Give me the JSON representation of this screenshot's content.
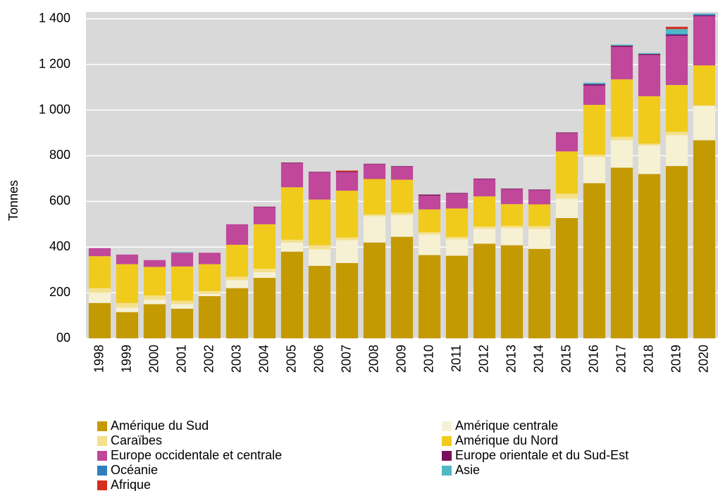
{
  "chart_data": {
    "type": "stacked_bar",
    "y_label": "Tonnes",
    "categories": [
      "1998",
      "1999",
      "2000",
      "2001",
      "2002",
      "2003",
      "2004",
      "2005",
      "2006",
      "2007",
      "2008",
      "2009",
      "2010",
      "2011",
      "2012",
      "2013",
      "2014",
      "2015",
      "2016",
      "2017",
      "2018",
      "2019",
      "2020"
    ],
    "series": [
      {
        "name": "Amérique du Sud",
        "color": "#c49a02",
        "values": [
          155,
          115,
          150,
          130,
          185,
          220,
          265,
          380,
          318,
          330,
          420,
          445,
          365,
          362,
          415,
          408,
          392,
          527,
          680,
          748,
          720,
          755,
          868
        ]
      },
      {
        "name": "Amérique centrale",
        "color": "#f6f1d3",
        "values": [
          45,
          20,
          20,
          20,
          10,
          35,
          25,
          40,
          72,
          100,
          115,
          95,
          90,
          72,
          65,
          75,
          88,
          85,
          115,
          120,
          125,
          135,
          150
        ]
      },
      {
        "name": "Caraïbes",
        "color": "#f5e08c",
        "values": [
          20,
          20,
          18,
          15,
          12,
          15,
          15,
          12,
          18,
          12,
          8,
          10,
          10,
          10,
          10,
          10,
          12,
          22,
          10,
          15,
          8,
          15,
          3
        ]
      },
      {
        "name": "Amérique du Nord",
        "color": "#f1cb1c",
        "values": [
          140,
          170,
          125,
          150,
          118,
          140,
          195,
          230,
          200,
          205,
          155,
          145,
          100,
          125,
          132,
          95,
          95,
          185,
          218,
          252,
          208,
          205,
          175
        ]
      },
      {
        "name": "Europe occidentale et centrale",
        "color": "#c0479a",
        "values": [
          35,
          42,
          30,
          60,
          50,
          90,
          75,
          105,
          120,
          80,
          65,
          58,
          60,
          65,
          75,
          65,
          62,
          80,
          85,
          142,
          180,
          215,
          215
        ]
      },
      {
        "name": "Europe orientale et du Sud-Est",
        "color": "#7b0f5b",
        "values": [
          0,
          0,
          0,
          0,
          0,
          0,
          2,
          3,
          2,
          3,
          2,
          2,
          5,
          3,
          3,
          3,
          3,
          3,
          5,
          5,
          5,
          5,
          4
        ]
      },
      {
        "name": "Océanie",
        "color": "#2f7ec0",
        "values": [
          0,
          0,
          0,
          0,
          0,
          0,
          0,
          0,
          0,
          0,
          0,
          0,
          0,
          0,
          0,
          0,
          0,
          0,
          3,
          0,
          0,
          5,
          5
        ]
      },
      {
        "name": "Asie",
        "color": "#4fb8c4",
        "values": [
          0,
          0,
          0,
          3,
          0,
          0,
          0,
          0,
          0,
          0,
          0,
          0,
          0,
          0,
          0,
          0,
          0,
          0,
          4,
          5,
          4,
          20,
          3
        ]
      },
      {
        "name": "Afrique",
        "color": "#d42e1e",
        "values": [
          0,
          0,
          0,
          0,
          0,
          0,
          0,
          0,
          0,
          5,
          0,
          0,
          0,
          0,
          0,
          0,
          0,
          0,
          0,
          0,
          0,
          10,
          0
        ]
      }
    ],
    "ylim": [
      0,
      1430
    ],
    "yticks": [
      {
        "value": 0,
        "label": "00"
      },
      200,
      400,
      600,
      800,
      {
        "value": 1000,
        "label": "1 000"
      },
      {
        "value": 1200,
        "label": "1 200"
      },
      {
        "value": 1400,
        "label": "1 400"
      }
    ],
    "grid": true
  }
}
